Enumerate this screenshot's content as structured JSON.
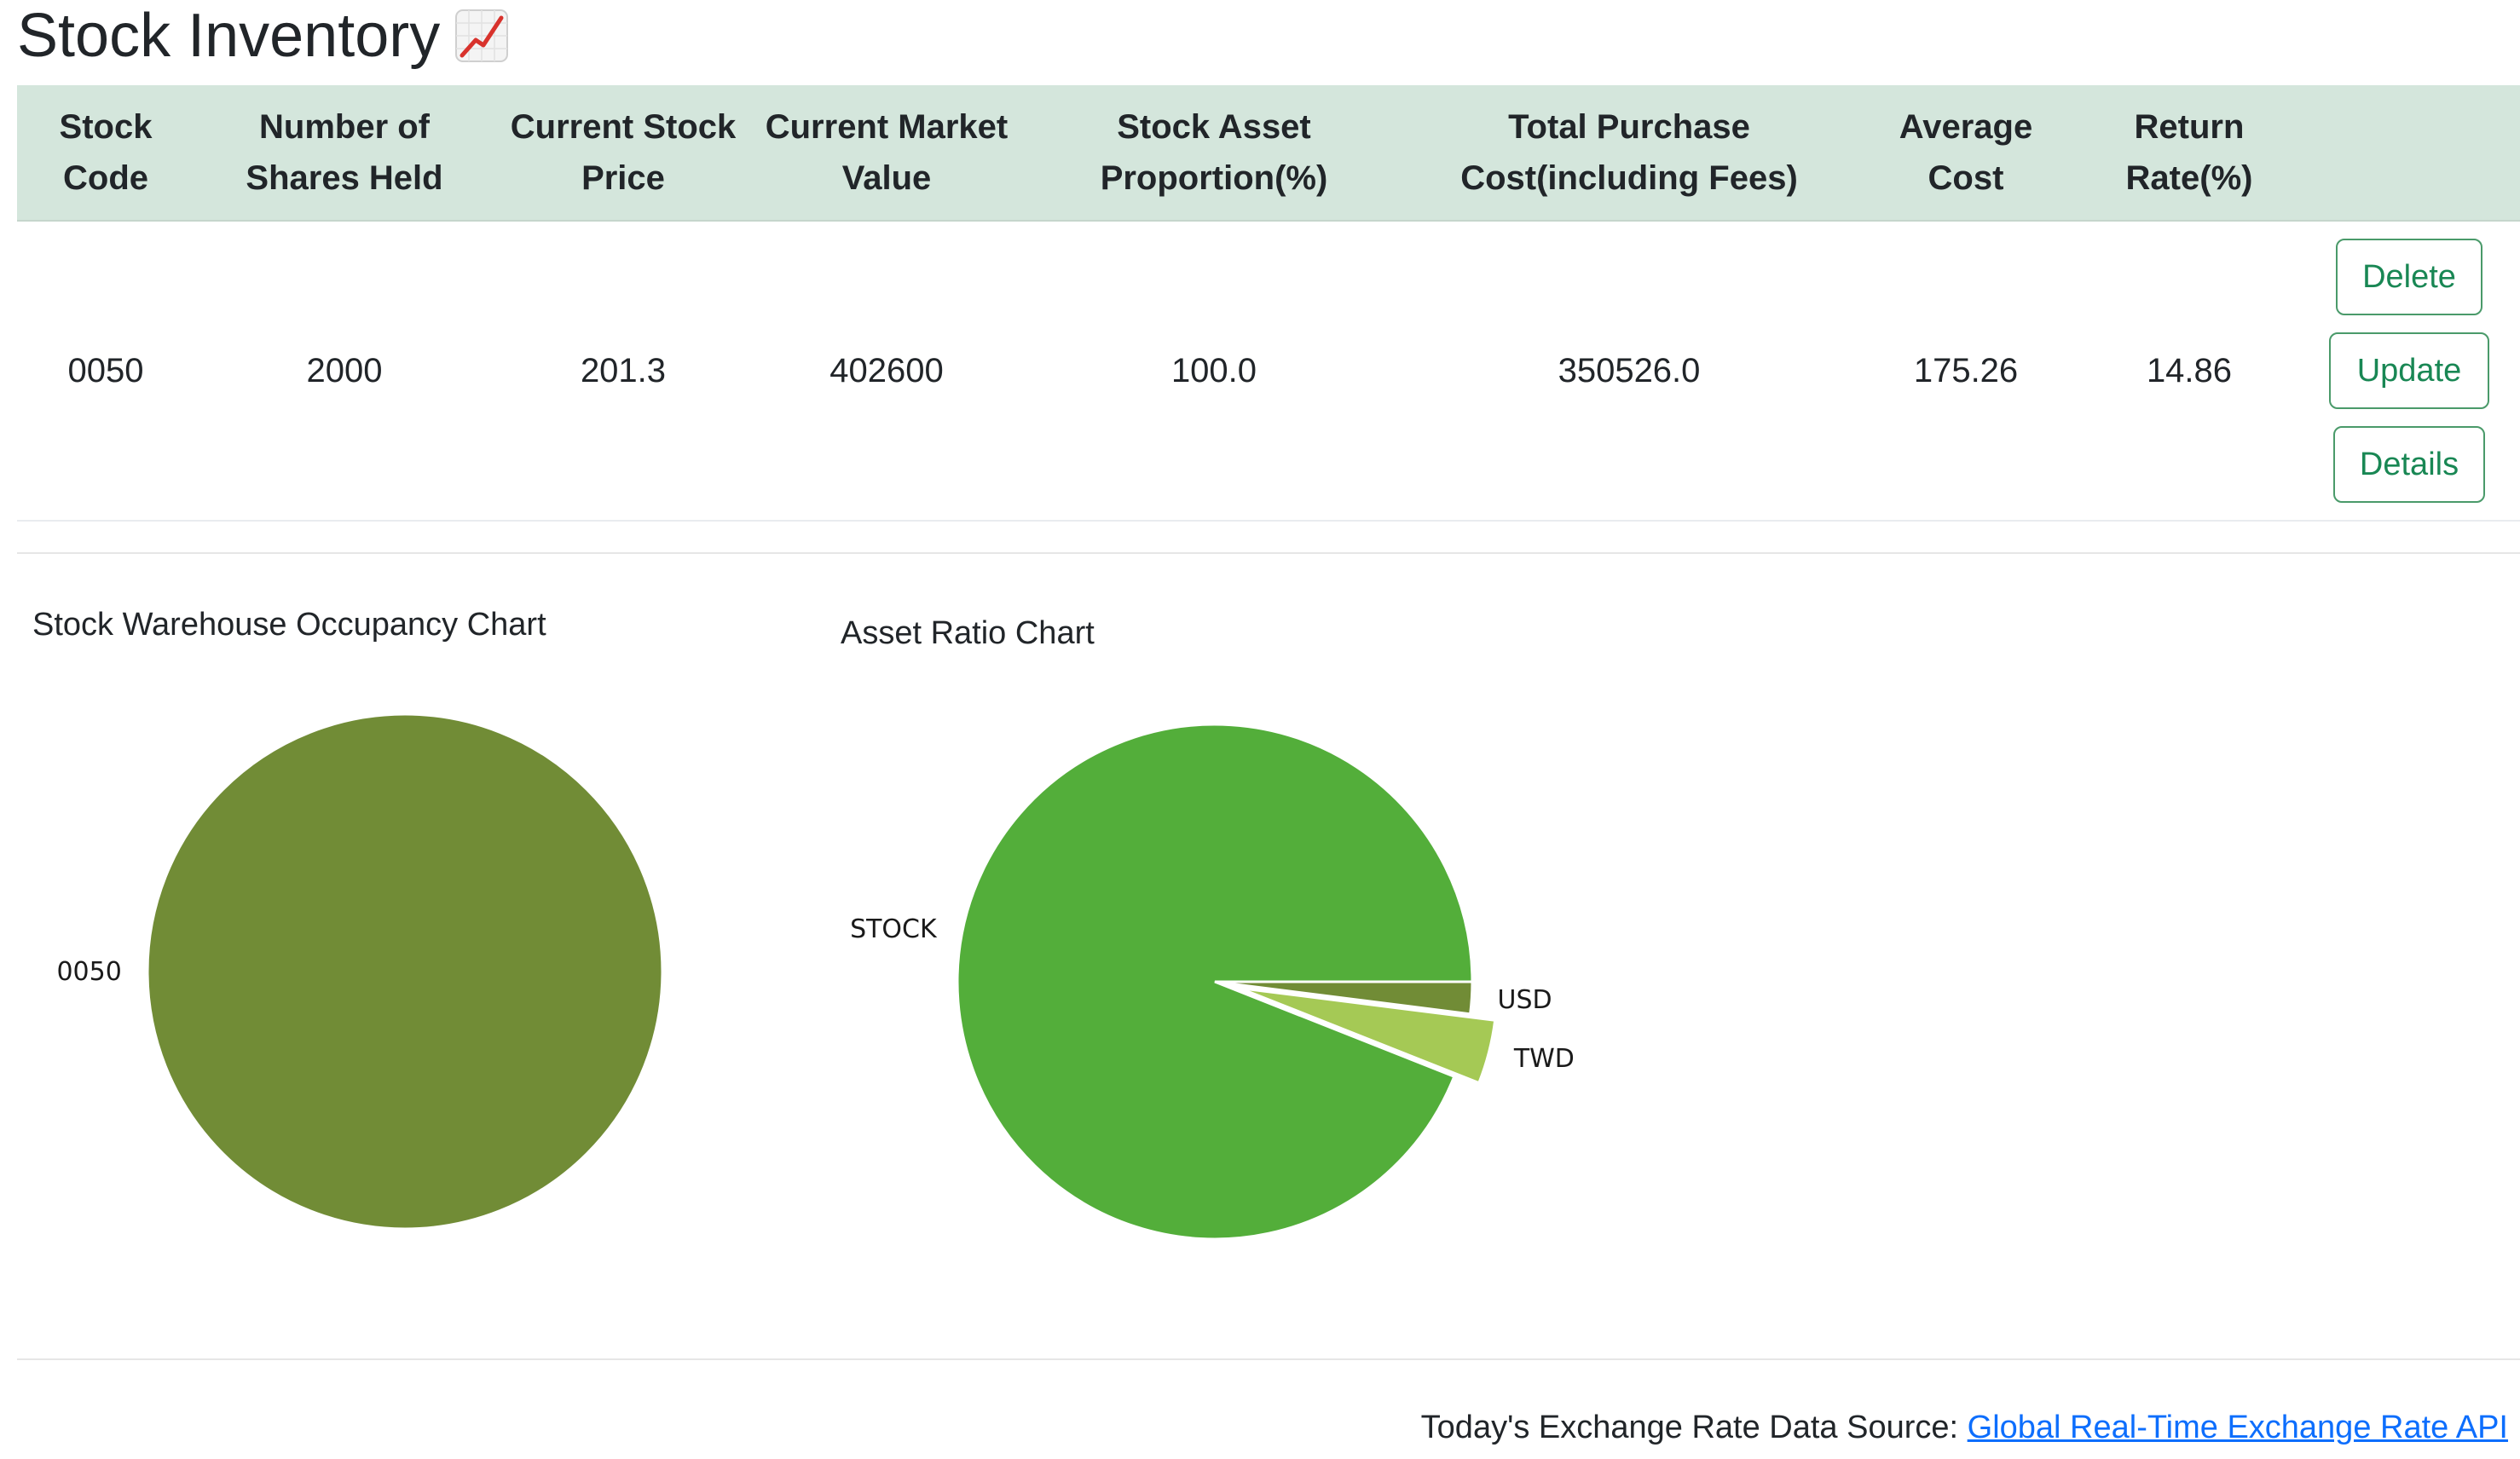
{
  "page": {
    "title": "Stock Inventory",
    "title_icon": "chart-increasing-icon"
  },
  "table": {
    "headers": [
      "Stock Code",
      "Number of Shares Held",
      "Current Stock Price",
      "Current Market Value",
      "Stock Asset Proportion(%)",
      "Total Purchase Cost(including Fees)",
      "Average Cost",
      "Return Rate(%)",
      ""
    ],
    "rows": [
      {
        "stock_code": "0050",
        "shares_held": "2000",
        "current_price": "201.3",
        "market_value": "402600",
        "asset_proportion": "100.0",
        "total_cost": "350526.0",
        "average_cost": "175.26",
        "return_rate": "14.86",
        "actions": {
          "delete": "Delete",
          "update": "Update",
          "details": "Details"
        }
      }
    ]
  },
  "colors": {
    "header_bg": "#d4e6dc",
    "return_negative_or_positive": "#dc3545",
    "button_green": "#198754",
    "link": "#0d6efd"
  },
  "chart_data": [
    {
      "type": "pie",
      "title": "Stock Warehouse Occupancy Chart",
      "labels": [
        "0050"
      ],
      "values": [
        100
      ],
      "colors": [
        "#718c36"
      ]
    },
    {
      "type": "pie",
      "title": "Asset Ratio Chart",
      "labels": [
        "STOCK",
        "TWD",
        "USD"
      ],
      "values": [
        94,
        4,
        2
      ],
      "colors": [
        "#53ae3a",
        "#a5c955",
        "#718c36"
      ],
      "explode": [
        0,
        1,
        0
      ]
    }
  ],
  "footer": {
    "text": "Today's Exchange Rate Data Source:",
    "link_text": "Global Real-Time Exchange Rate API"
  }
}
